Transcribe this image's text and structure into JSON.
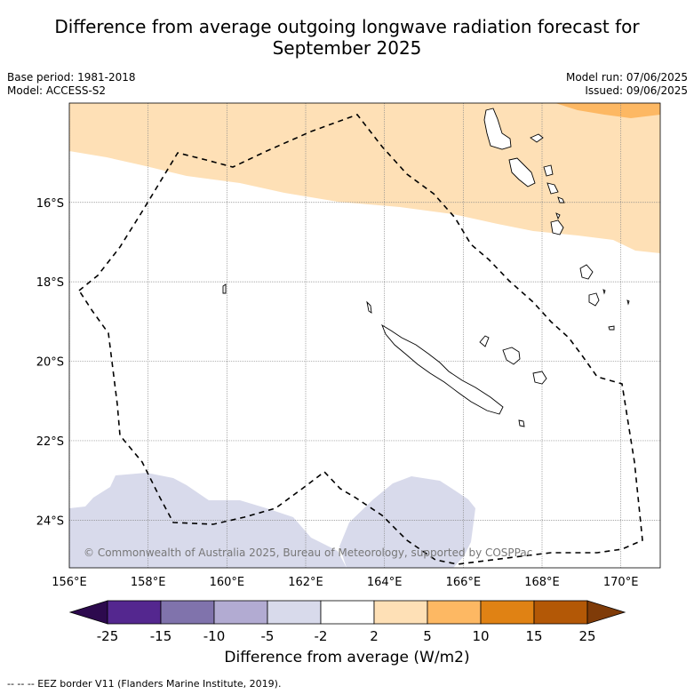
{
  "title_line1": "Difference from average outgoing longwave radiation forecast for",
  "title_line2": "September 2025",
  "meta": {
    "base_period": "Base period: 1981-2018",
    "model": "Model: ACCESS-S2",
    "model_run": "Model run: 07/06/2025",
    "issued": "Issued: 09/06/2025"
  },
  "map": {
    "lon_ticks": [
      "156°E",
      "158°E",
      "160°E",
      "162°E",
      "164°E",
      "166°E",
      "168°E",
      "170°E"
    ],
    "lat_ticks": [
      "16°S",
      "18°S",
      "20°S",
      "22°S",
      "24°S"
    ],
    "lon_range": [
      156,
      171
    ],
    "lat_range": [
      -25.2,
      -13.5
    ],
    "copyright": "© Commonwealth of Australia 2025, Bureau of Meteorology, supported by COSPPac"
  },
  "colorbar": {
    "labels": [
      "-25",
      "-15",
      "-10",
      "-5",
      "-2",
      "2",
      "5",
      "10",
      "15",
      "25"
    ],
    "colors": {
      "lt_min": "#2d0a4e",
      "m25_m15": "#54278f",
      "m15_m10": "#8073ac",
      "m10_m5": "#b2abd2",
      "m5_m2": "#d8daeb",
      "m2_p2": "#ffffff",
      "p2_p5": "#fee0b6",
      "p5_p10": "#fdb863",
      "p10_p15": "#e08214",
      "p15_p25": "#b35806",
      "gt_max": "#7f3b08"
    },
    "label": "Difference from average (W/m2)"
  },
  "eez_note": "--  --  -- EEZ border V11 (Flanders Marine Institute, 2019)."
}
